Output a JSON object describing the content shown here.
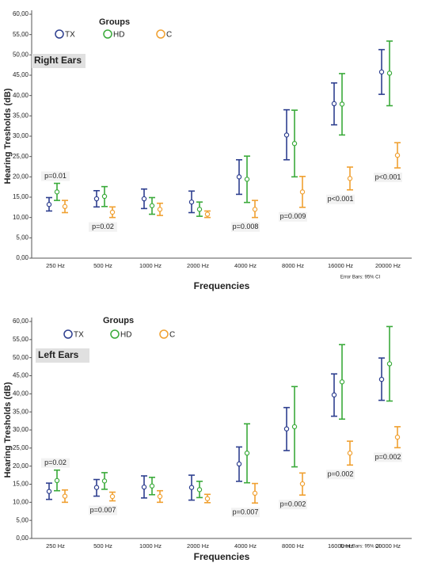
{
  "chart_data": [
    {
      "type": "errorbar",
      "panel_label": "Right Ears",
      "legend_title": "Groups",
      "y_label": "Hearing Tresholds (dB)",
      "x_label": "Frequencies",
      "note": "Error Bars: 95% CI",
      "categories": [
        "250 Hz",
        "500 Hz",
        "1000 Hz",
        "2000 Hz",
        "4000 Hz",
        "8000 Hz",
        "16000 Hz",
        "20000 Hz"
      ],
      "ylim": [
        0,
        60
      ],
      "yticks": [
        {
          "value": 0,
          "label": "0,00"
        },
        {
          "value": 5,
          "label": "5,00"
        },
        {
          "value": 10,
          "label": "10,00"
        },
        {
          "value": 15,
          "label": "15,00"
        },
        {
          "value": 20,
          "label": "20,00"
        },
        {
          "value": 25,
          "label": "25,00"
        },
        {
          "value": 30,
          "label": "30,00"
        },
        {
          "value": 35,
          "label": "35,00"
        },
        {
          "value": 40,
          "label": "40,00"
        },
        {
          "value": 45,
          "label": "45,00"
        },
        {
          "value": 50,
          "label": "50,00"
        },
        {
          "value": 55,
          "label": "55,00"
        },
        {
          "value": 60,
          "label": "60,00"
        }
      ],
      "series": [
        {
          "name": "TX",
          "color": "#2e3f8f",
          "values": [
            13.2,
            14.6,
            14.6,
            13.8,
            20,
            30.3,
            38,
            45.8
          ],
          "lower": [
            11.6,
            12.6,
            12.2,
            11.2,
            15.7,
            24.2,
            32.8,
            40.3
          ],
          "upper": [
            14.9,
            16.6,
            17,
            16.5,
            24.2,
            36.5,
            43.1,
            51.3
          ]
        },
        {
          "name": "HD",
          "color": "#3aaa3a",
          "values": [
            16.3,
            15.2,
            12.9,
            12,
            19.4,
            28.2,
            37.9,
            45.5
          ],
          "lower": [
            14.2,
            12.7,
            10.8,
            10.3,
            13.7,
            20,
            30.3,
            37.5
          ],
          "upper": [
            18.4,
            17.6,
            14.9,
            13.8,
            25.1,
            36.4,
            45.4,
            53.4
          ]
        },
        {
          "name": "C",
          "color": "#f0a030",
          "values": [
            12.7,
            11.3,
            12,
            10.8,
            12,
            16.3,
            19.6,
            25.3
          ],
          "lower": [
            11.2,
            10,
            10.5,
            10,
            10,
            12.5,
            16.8,
            22.2
          ],
          "upper": [
            14.2,
            12.6,
            13.5,
            11.6,
            14.2,
            20.1,
            22.4,
            28.4
          ]
        }
      ],
      "p_values": [
        "p=0.01",
        "p=0.02",
        null,
        null,
        "p=0.008",
        "p=0.009",
        "p<0.001",
        "p<0.001"
      ]
    },
    {
      "type": "errorbar",
      "panel_label": "Left Ears",
      "legend_title": "Groups",
      "y_label": "Hearing Tresholds (dB)",
      "x_label": "Frequencies",
      "note": "Error Bars: 95% CI",
      "categories": [
        "250 Hz",
        "500 Hz",
        "1000 Hz",
        "2000 Hz",
        "4000 Hz",
        "8000 Hz",
        "16000 Hz",
        "20000 Hz"
      ],
      "ylim": [
        0,
        60
      ],
      "yticks": [
        {
          "value": 0,
          "label": "0,00"
        },
        {
          "value": 5,
          "label": "5,00"
        },
        {
          "value": 10,
          "label": "10,00"
        },
        {
          "value": 15,
          "label": "15,00"
        },
        {
          "value": 20,
          "label": "20,00"
        },
        {
          "value": 25,
          "label": "25,00"
        },
        {
          "value": 30,
          "label": "30,00"
        },
        {
          "value": 35,
          "label": "35,00"
        },
        {
          "value": 40,
          "label": "40,00"
        },
        {
          "value": 45,
          "label": "45,00"
        },
        {
          "value": 50,
          "label": "50,00"
        },
        {
          "value": 55,
          "label": "55,00"
        },
        {
          "value": 60,
          "label": "60,00"
        }
      ],
      "series": [
        {
          "name": "TX",
          "color": "#2e3f8f",
          "values": [
            13,
            14.1,
            14.2,
            14.1,
            20.6,
            30.3,
            39.7,
            44
          ],
          "lower": [
            10.8,
            11.7,
            11.2,
            10.6,
            15.8,
            24.3,
            33.8,
            38.2
          ],
          "upper": [
            15.3,
            16.3,
            17.3,
            17.5,
            25.3,
            36.2,
            45.5,
            49.9
          ]
        },
        {
          "name": "HD",
          "color": "#3aaa3a",
          "values": [
            16,
            15.9,
            14.5,
            13.5,
            23.6,
            30.9,
            43.3,
            48.3
          ],
          "lower": [
            13.2,
            13.6,
            12.1,
            11.3,
            15.4,
            19.8,
            33,
            38
          ],
          "upper": [
            18.9,
            18.2,
            16.9,
            15.8,
            31.7,
            42,
            53.6,
            58.6
          ]
        },
        {
          "name": "C",
          "color": "#f0a030",
          "values": [
            11.7,
            11.6,
            11.6,
            11,
            12.5,
            15.1,
            23.6,
            28
          ],
          "lower": [
            10,
            10.4,
            10,
            9.9,
            9.8,
            12,
            20.3,
            25.1
          ],
          "upper": [
            13.4,
            12.8,
            13.2,
            12.2,
            15.2,
            18.1,
            26.9,
            30.9
          ]
        }
      ],
      "p_values": [
        "p=0.02",
        "p=0.007",
        null,
        null,
        "p=0.007",
        "p=0.002",
        "p=0.002",
        "p=0.002"
      ]
    }
  ]
}
